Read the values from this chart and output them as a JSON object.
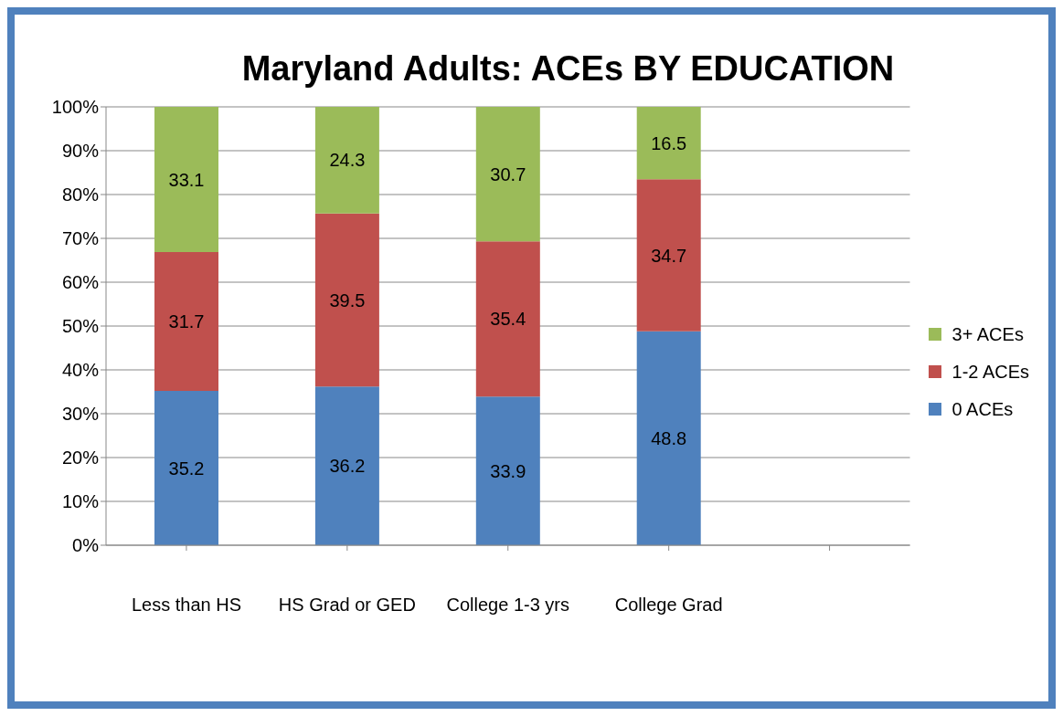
{
  "chart_data": {
    "type": "bar",
    "title": "Maryland Adults:  ACEs BY EDUCATION",
    "categories": [
      "Less than HS",
      "HS Grad or GED",
      "College 1-3 yrs",
      "College Grad",
      null
    ],
    "stacked": true,
    "series": [
      {
        "name": "0 ACEs",
        "color": "#4f81bd",
        "values": [
          35.2,
          36.2,
          33.9,
          48.8,
          null
        ]
      },
      {
        "name": "1-2 ACEs",
        "color": "#c0504d",
        "values": [
          31.7,
          39.5,
          35.4,
          34.7,
          null
        ]
      },
      {
        "name": "3+ ACEs",
        "color": "#9bbb59",
        "values": [
          33.1,
          24.3,
          30.7,
          16.5,
          null
        ]
      }
    ],
    "ylim": [
      0,
      100
    ],
    "yticks": [
      {
        "value": 0,
        "label": "0%"
      },
      {
        "value": 10,
        "label": "10%"
      },
      {
        "value": 20,
        "label": "20%"
      },
      {
        "value": 30,
        "label": "30%"
      },
      {
        "value": 40,
        "label": "40%"
      },
      {
        "value": 50,
        "label": "50%"
      },
      {
        "value": 60,
        "label": "60%"
      },
      {
        "value": 70,
        "label": "70%"
      },
      {
        "value": 80,
        "label": "80%"
      },
      {
        "value": 90,
        "label": "90%"
      },
      {
        "value": 100,
        "label": "100%"
      }
    ],
    "grid": "y",
    "legend": "right",
    "data_labels": true
  }
}
